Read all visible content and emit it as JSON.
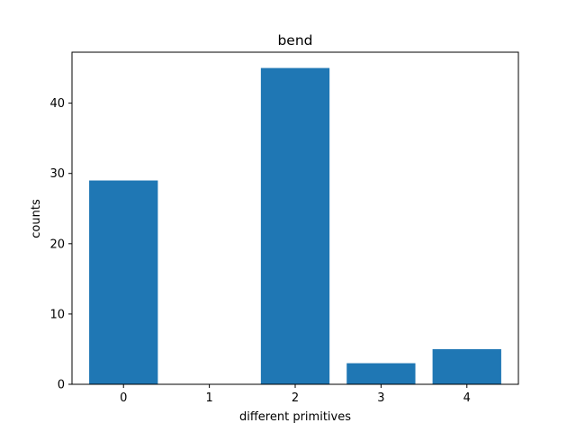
{
  "chart_data": {
    "type": "bar",
    "title": "bend",
    "xlabel": "different primitives",
    "ylabel": "counts",
    "categories": [
      "0",
      "1",
      "2",
      "3",
      "4"
    ],
    "x": [
      0,
      1,
      2,
      3,
      4
    ],
    "values": [
      29,
      0,
      45,
      3,
      5
    ],
    "xlim": [
      -0.6,
      4.6
    ],
    "ylim": [
      0,
      47.25
    ],
    "yticks": [
      0,
      10,
      20,
      30,
      40
    ],
    "xticks": [
      0,
      1,
      2,
      3,
      4
    ],
    "grid": false,
    "legend": "none",
    "colors": {
      "bar": "#1f77b4",
      "axes": "#000000",
      "background": "#ffffff"
    }
  }
}
